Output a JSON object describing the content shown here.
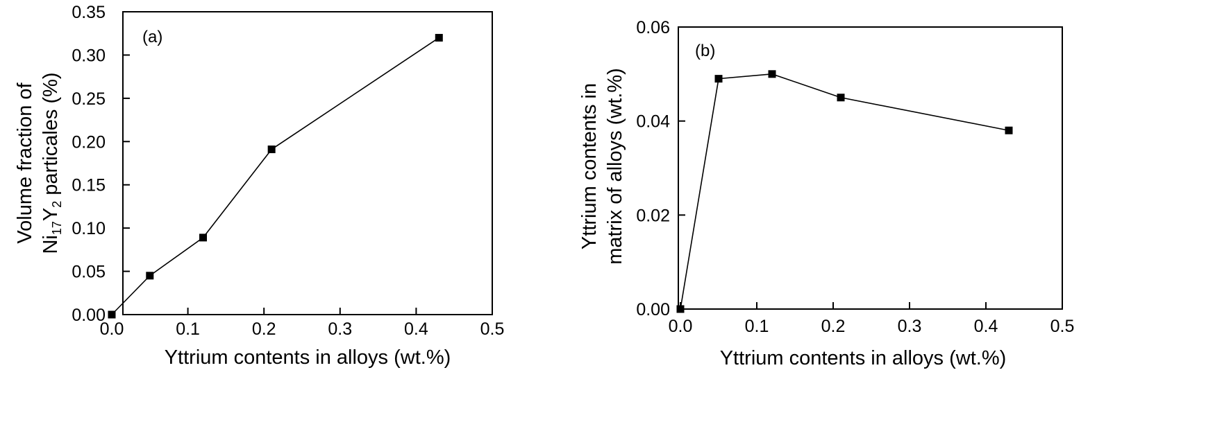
{
  "chart_data": [
    {
      "type": "line",
      "panel_label": "(a)",
      "xlabel": "Yttrium contents in alloys (wt.%)",
      "ylabel_line1": "Volume fraction of",
      "ylabel_line2": {
        "a": "Ni",
        "b": "17",
        "c": "Y",
        "d": "2",
        "e": " particales (%)"
      },
      "xlim": [
        0.0,
        0.5
      ],
      "ylim": [
        0.0,
        0.35
      ],
      "xticks": [
        "0.0",
        "0.1",
        "0.2",
        "0.3",
        "0.4",
        "0.5"
      ],
      "yticks": [
        "0.00",
        "0.05",
        "0.10",
        "0.15",
        "0.20",
        "0.25",
        "0.30",
        "0.35"
      ],
      "marker": "square",
      "x": [
        0.0,
        0.05,
        0.12,
        0.21,
        0.43
      ],
      "y": [
        0.0,
        0.045,
        0.089,
        0.191,
        0.32
      ]
    },
    {
      "type": "line",
      "panel_label": "(b)",
      "xlabel": "Yttrium contents in alloys (wt.%)",
      "ylabel_line1": "Yttrium contents in",
      "ylabel_line2": "matrix of alloys (wt.%)",
      "xlim": [
        0.0,
        0.5
      ],
      "ylim": [
        0.0,
        0.06
      ],
      "xticks": [
        "0.0",
        "0.1",
        "0.2",
        "0.3",
        "0.4",
        "0.5"
      ],
      "yticks": [
        "0.00",
        "0.02",
        "0.04",
        "0.06"
      ],
      "marker": "square",
      "x": [
        0.0,
        0.05,
        0.12,
        0.21,
        0.43
      ],
      "y": [
        0.0,
        0.049,
        0.05,
        0.045,
        0.038
      ]
    }
  ]
}
